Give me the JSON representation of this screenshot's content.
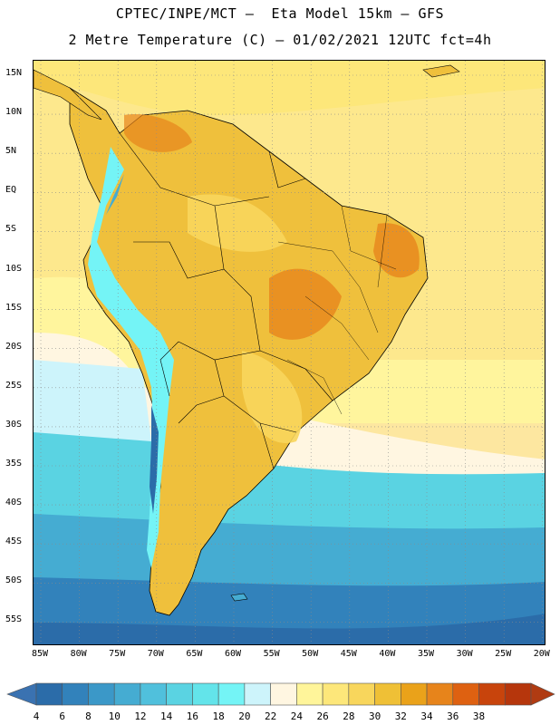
{
  "title_line1": "CPTEC/INPE/MCT –  Eta Model 15km – GFS",
  "title_line2": "2 Metre Temperature (C) – 01/02/2021 12UTC fct=4h",
  "lat_labels": [
    "15N",
    "10N",
    "5N",
    "EQ",
    "5S",
    "10S",
    "15S",
    "20S",
    "25S",
    "30S",
    "35S",
    "40S",
    "45S",
    "50S",
    "55S"
  ],
  "lon_labels": [
    "85W",
    "80W",
    "75W",
    "70W",
    "65W",
    "60W",
    "55W",
    "50W",
    "45W",
    "40W",
    "35W",
    "30W",
    "25W",
    "20W"
  ],
  "colorbar": {
    "labels": [
      "4",
      "6",
      "8",
      "10",
      "12",
      "14",
      "16",
      "18",
      "20",
      "22",
      "24",
      "26",
      "28",
      "30",
      "32",
      "34",
      "36",
      "38"
    ],
    "colors": [
      "#2b6ca9",
      "#3282bb",
      "#3b98c8",
      "#45acd2",
      "#50c0dc",
      "#5ad3e2",
      "#63e4ea",
      "#74f4f6",
      "#cdf4fb",
      "#fff6e1",
      "#fff59a",
      "#fde77a",
      "#f8d65c",
      "#efc036",
      "#eaa21a",
      "#e7841b",
      "#de6111",
      "#c8440c",
      "#b6360c"
    ],
    "low_color": "#3a72b1",
    "high_color": "#b03b12"
  },
  "map_colors": {
    "ocean_warm": "#fde88d",
    "ocean_mid": "#fff59d",
    "ocean_cool": "#cdf4fb",
    "ocean_cold": "#5ad3e2",
    "ocean_colder": "#45acd2",
    "ocean_coldest": "#2b6ca9",
    "land_base": "#efc03c",
    "land_hot": "#e7841b",
    "andes": "#74f4f6",
    "andes_peak": "#2b6ca9"
  }
}
